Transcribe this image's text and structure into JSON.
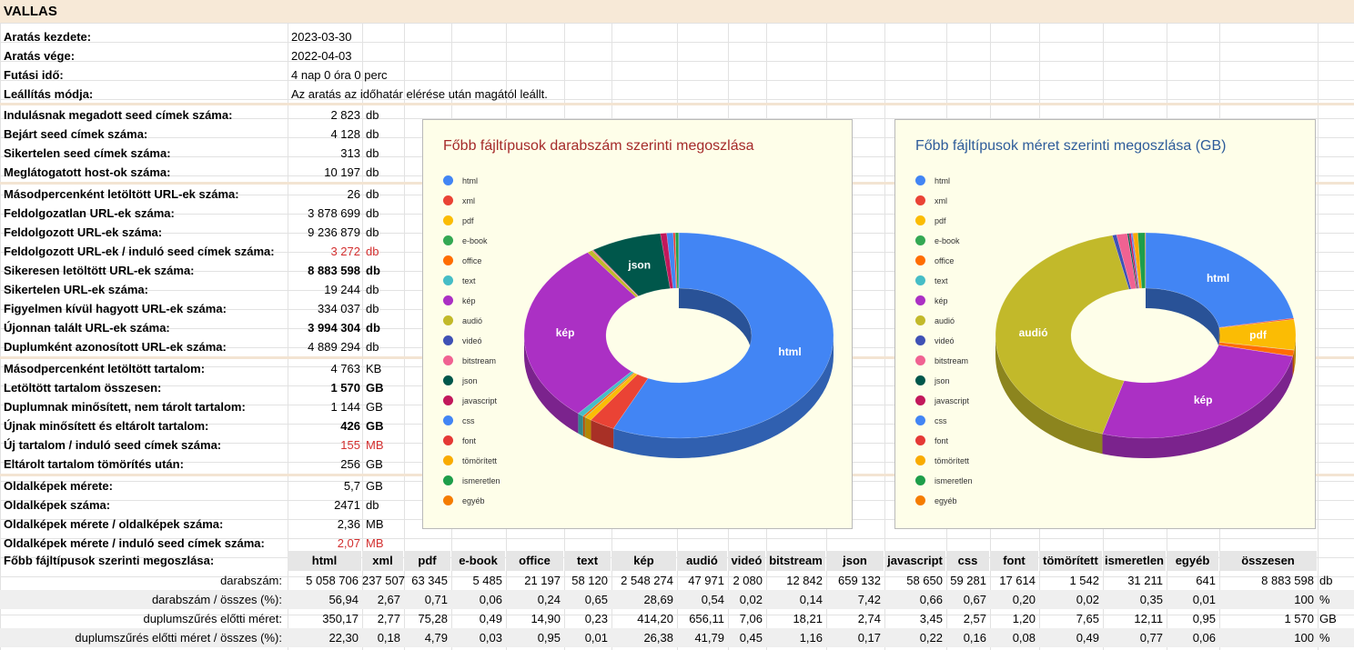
{
  "title": "VALLAS",
  "info_rows": [
    {
      "label": "Aratás kezdete:",
      "value": "2023-03-30"
    },
    {
      "label": "Aratás vége:",
      "value": "2022-04-03"
    },
    {
      "label": "Futási idő:",
      "value": "4 nap 0 óra 0 perc"
    },
    {
      "label": "Leállítás módja:",
      "value": "Az aratás az időhatár elérése után magától leállt."
    }
  ],
  "stat_groups": [
    [
      {
        "label": "Indulásnak megadott seed címek száma:",
        "value": "2 823",
        "unit": "db"
      },
      {
        "label": "Bejárt seed címek száma:",
        "value": "4 128",
        "unit": "db"
      },
      {
        "label": "Sikertelen seed címek száma:",
        "value": "313",
        "unit": "db"
      },
      {
        "label": "Meglátogatott host-ok száma:",
        "value": "10 197",
        "unit": "db"
      }
    ],
    [
      {
        "label": "Másodpercenként letöltött URL-ek száma:",
        "value": "26",
        "unit": "db"
      },
      {
        "label": "Feldolgozatlan URL-ek száma:",
        "value": "3 878 699",
        "unit": "db"
      },
      {
        "label": "Feldolgozott URL-ek száma:",
        "value": "9 236 879",
        "unit": "db"
      },
      {
        "label": "Feldolgozott URL-ek / induló seed címek száma:",
        "value": "3 272",
        "unit": "db",
        "red": true
      },
      {
        "label": "Sikeresen letöltött URL-ek száma:",
        "value": "8 883 598",
        "unit": "db",
        "bold": true
      },
      {
        "label": "Sikertelen URL-ek száma:",
        "value": "19 244",
        "unit": "db"
      },
      {
        "label": "Figyelmen kívül hagyott URL-ek száma:",
        "value": "334 037",
        "unit": "db"
      },
      {
        "label": "Újonnan talált URL-ek száma:",
        "value": "3 994 304",
        "unit": "db",
        "bold": true
      },
      {
        "label": "Duplumként azonosított URL-ek száma:",
        "value": "4 889 294",
        "unit": "db"
      }
    ],
    [
      {
        "label": "Másodpercenként letöltött tartalom:",
        "value": "4 763",
        "unit": "KB"
      },
      {
        "label": "Letöltött tartalom összesen:",
        "value": "1 570",
        "unit": "GB",
        "bold": true
      },
      {
        "label": "Duplumnak minősített, nem tárolt tartalom:",
        "value": "1 144",
        "unit": "GB"
      },
      {
        "label": "Újnak minősített és eltárolt tartalom:",
        "value": "426",
        "unit": "GB",
        "bold": true
      },
      {
        "label": "Új tartalom / induló seed címek száma:",
        "value": "155",
        "unit": "MB",
        "red": true
      },
      {
        "label": "Eltárolt tartalom tömörítés után:",
        "value": "256",
        "unit": "GB"
      }
    ],
    [
      {
        "label": "Oldalképek mérete:",
        "value": "5,7",
        "unit": "GB"
      },
      {
        "label": "Oldalképek száma:",
        "value": "2471",
        "unit": "db"
      },
      {
        "label": "Oldalképek mérete  / oldalképek száma:",
        "value": "2,36",
        "unit": "MB"
      },
      {
        "label": "Oldalképek mérete  / induló seed címek száma:",
        "value": "2,07",
        "unit": "MB",
        "red": true
      }
    ]
  ],
  "legend": [
    {
      "name": "html",
      "color": "#4285f4"
    },
    {
      "name": "xml",
      "color": "#ea4335"
    },
    {
      "name": "pdf",
      "color": "#fbbc04"
    },
    {
      "name": "e-book",
      "color": "#34a853"
    },
    {
      "name": "office",
      "color": "#ff6d01"
    },
    {
      "name": "text",
      "color": "#46bdc6"
    },
    {
      "name": "kép",
      "color": "#ab30c4"
    },
    {
      "name": "audió",
      "color": "#c2b92a"
    },
    {
      "name": "videó",
      "color": "#3f51b5"
    },
    {
      "name": "bitstream",
      "color": "#f06292"
    },
    {
      "name": "json",
      "color": "#00574b"
    },
    {
      "name": "javascript",
      "color": "#c2185b"
    },
    {
      "name": "css",
      "color": "#4285f4"
    },
    {
      "name": "font",
      "color": "#e53935"
    },
    {
      "name": "tömörített",
      "color": "#f9ab00"
    },
    {
      "name": "ismeretlen",
      "color": "#1e9e4a"
    },
    {
      "name": "egyéb",
      "color": "#f57c00"
    }
  ],
  "chart_data": [
    {
      "type": "pie",
      "title": "Főbb fájltípusok darabszám szerinti megoszlása",
      "title_color": "#a52a2a",
      "donut": true,
      "categories": [
        "html",
        "xml",
        "pdf",
        "e-book",
        "office",
        "text",
        "kép",
        "audió",
        "videó",
        "bitstream",
        "json",
        "javascript",
        "css",
        "font",
        "tömörített",
        "ismeretlen",
        "egyéb"
      ],
      "values": [
        56.94,
        2.67,
        0.71,
        0.06,
        0.24,
        0.65,
        28.69,
        0.54,
        0.02,
        0.14,
        7.42,
        0.66,
        0.67,
        0.2,
        0.02,
        0.35,
        0.01
      ],
      "slice_labels": {
        "html": "html",
        "kép": "kép",
        "json": "json"
      }
    },
    {
      "type": "pie",
      "title": "Főbb fájltípusok méret szerinti megoszlása (GB)",
      "title_color": "#2e5c9a",
      "donut": true,
      "categories": [
        "html",
        "xml",
        "pdf",
        "e-book",
        "office",
        "text",
        "kép",
        "audió",
        "videó",
        "bitstream",
        "json",
        "javascript",
        "css",
        "font",
        "tömörített",
        "ismeretlen",
        "egyéb"
      ],
      "values": [
        22.3,
        0.18,
        4.79,
        0.03,
        0.95,
        0.01,
        26.38,
        41.79,
        0.45,
        1.16,
        0.17,
        0.22,
        0.16,
        0.08,
        0.49,
        0.77,
        0.06
      ],
      "slice_labels": {
        "html": "html",
        "pdf": "pdf",
        "kép": "kép",
        "audió": "audió"
      }
    }
  ],
  "table": {
    "header_label": "Főbb fájltípusok szerinti megoszlása:",
    "columns": [
      "html",
      "xml",
      "pdf",
      "e-book",
      "office",
      "text",
      "kép",
      "audió",
      "videó",
      "bitstream",
      "json",
      "javascript",
      "css",
      "font",
      "tömörített",
      "ismeretlen",
      "egyéb",
      "összesen"
    ],
    "rows": [
      {
        "label": "darabszám:",
        "unit": "db",
        "values": [
          "5 058 706",
          "237 507",
          "63 345",
          "5 485",
          "21 197",
          "58 120",
          "2 548 274",
          "47 971",
          "2 080",
          "12 842",
          "659 132",
          "58 650",
          "59 281",
          "17 614",
          "1 542",
          "31 211",
          "641",
          "8 883 598"
        ]
      },
      {
        "label": "darabszám / összes (%):",
        "unit": "%",
        "values": [
          "56,94",
          "2,67",
          "0,71",
          "0,06",
          "0,24",
          "0,65",
          "28,69",
          "0,54",
          "0,02",
          "0,14",
          "7,42",
          "0,66",
          "0,67",
          "0,20",
          "0,02",
          "0,35",
          "0,01",
          "100"
        ]
      },
      {
        "label": "duplumszűrés előtti méret:",
        "unit": "GB",
        "values": [
          "350,17",
          "2,77",
          "75,28",
          "0,49",
          "14,90",
          "0,23",
          "414,20",
          "656,11",
          "7,06",
          "18,21",
          "2,74",
          "3,45",
          "2,57",
          "1,20",
          "7,65",
          "12,11",
          "0,95",
          "1 570"
        ]
      },
      {
        "label": "duplumszűrés előtti méret / összes (%):",
        "unit": "%",
        "values": [
          "22,30",
          "0,18",
          "4,79",
          "0,03",
          "0,95",
          "0,01",
          "26,38",
          "41,79",
          "0,45",
          "1,16",
          "0,17",
          "0,22",
          "0,16",
          "0,08",
          "0,49",
          "0,77",
          "0,06",
          "100"
        ]
      }
    ]
  }
}
